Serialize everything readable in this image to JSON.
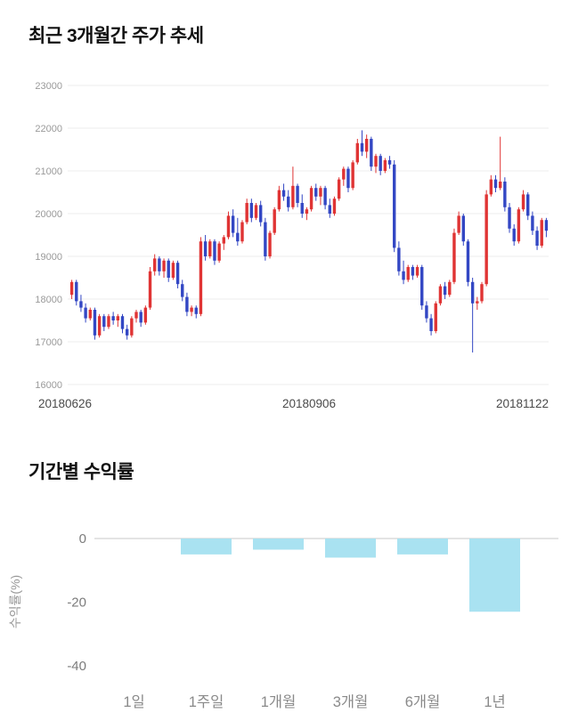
{
  "sections": {
    "price": {
      "title": "최근 3개월간 주가 추세"
    },
    "returns": {
      "title": "기간별 수익률"
    }
  },
  "chart_data": [
    {
      "type": "candlestick",
      "title": "최근 3개월간 주가 추세",
      "ylim": [
        16000,
        23000
      ],
      "y_ticks": [
        16000,
        17000,
        18000,
        19000,
        20000,
        21000,
        22000,
        23000
      ],
      "x_labels": [
        "20180626",
        "20180906",
        "20181122"
      ],
      "up_color": "#e03434",
      "down_color": "#3347c4",
      "grid": true,
      "legend": "none",
      "ohlc": [
        [
          18100,
          18450,
          18000,
          18400
        ],
        [
          18400,
          18450,
          17850,
          17950
        ],
        [
          17950,
          18100,
          17700,
          17800
        ],
        [
          17800,
          17900,
          17450,
          17550
        ],
        [
          17550,
          17800,
          17500,
          17750
        ],
        [
          17750,
          17800,
          17050,
          17150
        ],
        [
          17150,
          17650,
          17100,
          17600
        ],
        [
          17600,
          17650,
          17250,
          17350
        ],
        [
          17350,
          17650,
          17300,
          17600
        ],
        [
          17600,
          17700,
          17400,
          17500
        ],
        [
          17500,
          17650,
          17350,
          17600
        ],
        [
          17600,
          17650,
          17200,
          17300
        ],
        [
          17300,
          17400,
          17050,
          17150
        ],
        [
          17150,
          17600,
          17100,
          17550
        ],
        [
          17550,
          17750,
          17450,
          17700
        ],
        [
          17700,
          17750,
          17350,
          17450
        ],
        [
          17450,
          17850,
          17400,
          17800
        ],
        [
          17800,
          18750,
          17750,
          18650
        ],
        [
          18650,
          19050,
          18550,
          18950
        ],
        [
          18950,
          19000,
          18550,
          18650
        ],
        [
          18650,
          18950,
          18500,
          18900
        ],
        [
          18900,
          18950,
          18400,
          18500
        ],
        [
          18500,
          18900,
          18450,
          18850
        ],
        [
          18850,
          18900,
          18250,
          18350
        ],
        [
          18350,
          18450,
          17950,
          18050
        ],
        [
          18050,
          18150,
          17600,
          17700
        ],
        [
          17700,
          17850,
          17600,
          17800
        ],
        [
          17800,
          17850,
          17550,
          17650
        ],
        [
          17650,
          19450,
          17600,
          19350
        ],
        [
          19350,
          19500,
          18900,
          19000
        ],
        [
          19000,
          19400,
          18950,
          19350
        ],
        [
          19350,
          19400,
          18800,
          18900
        ],
        [
          18900,
          19350,
          18850,
          19300
        ],
        [
          19300,
          19500,
          19150,
          19450
        ],
        [
          19450,
          20050,
          19400,
          19950
        ],
        [
          19950,
          20100,
          19450,
          19550
        ],
        [
          19550,
          19900,
          19250,
          19350
        ],
        [
          19350,
          19850,
          19300,
          19800
        ],
        [
          19800,
          20350,
          19750,
          20250
        ],
        [
          20250,
          20350,
          19800,
          19900
        ],
        [
          19900,
          20250,
          19850,
          20200
        ],
        [
          20200,
          20300,
          19700,
          19800
        ],
        [
          19800,
          19900,
          18900,
          19000
        ],
        [
          19000,
          19600,
          18950,
          19550
        ],
        [
          19550,
          20150,
          19500,
          20100
        ],
        [
          20100,
          20650,
          20050,
          20550
        ],
        [
          20550,
          20700,
          20300,
          20400
        ],
        [
          20400,
          20550,
          20050,
          20150
        ],
        [
          20150,
          21100,
          20100,
          20650
        ],
        [
          20650,
          20700,
          20150,
          20250
        ],
        [
          20250,
          20450,
          19900,
          20000
        ],
        [
          20000,
          20150,
          19850,
          20100
        ],
        [
          20100,
          20650,
          20050,
          20600
        ],
        [
          20600,
          20700,
          20300,
          20400
        ],
        [
          20400,
          20650,
          20200,
          20600
        ],
        [
          20600,
          20650,
          20100,
          20200
        ],
        [
          20200,
          20350,
          19900,
          20000
        ],
        [
          20000,
          20400,
          19950,
          20350
        ],
        [
          20350,
          20850,
          20300,
          20800
        ],
        [
          20800,
          21100,
          20650,
          21050
        ],
        [
          21050,
          21100,
          20500,
          20600
        ],
        [
          20600,
          21250,
          20550,
          21200
        ],
        [
          21200,
          21750,
          21150,
          21650
        ],
        [
          21650,
          21950,
          21350,
          21450
        ],
        [
          21450,
          21850,
          21300,
          21750
        ],
        [
          21750,
          21800,
          21000,
          21100
        ],
        [
          21100,
          21400,
          20950,
          21350
        ],
        [
          21350,
          21400,
          20900,
          21000
        ],
        [
          21000,
          21300,
          20950,
          21250
        ],
        [
          21250,
          21350,
          21050,
          21150
        ],
        [
          21150,
          21250,
          19100,
          19200
        ],
        [
          19200,
          19350,
          18550,
          18650
        ],
        [
          18650,
          18900,
          18350,
          18450
        ],
        [
          18450,
          18800,
          18400,
          18750
        ],
        [
          18750,
          18800,
          18450,
          18550
        ],
        [
          18550,
          18800,
          18500,
          18750
        ],
        [
          18750,
          18800,
          17750,
          17850
        ],
        [
          17850,
          17950,
          17450,
          17550
        ],
        [
          17550,
          17650,
          17150,
          17250
        ],
        [
          17250,
          17950,
          17200,
          17900
        ],
        [
          17900,
          18350,
          17850,
          18300
        ],
        [
          18300,
          18400,
          18000,
          18100
        ],
        [
          18100,
          18450,
          18050,
          18400
        ],
        [
          18400,
          19650,
          18350,
          19550
        ],
        [
          19550,
          20050,
          19500,
          19950
        ],
        [
          19950,
          20000,
          19250,
          19350
        ],
        [
          19350,
          19400,
          18300,
          18400
        ],
        [
          18400,
          18500,
          16750,
          17900
        ],
        [
          17900,
          18050,
          17750,
          17950
        ],
        [
          17950,
          18400,
          17900,
          18350
        ],
        [
          18350,
          20550,
          18300,
          20450
        ],
        [
          20450,
          20900,
          20400,
          20800
        ],
        [
          20800,
          20900,
          20500,
          20600
        ],
        [
          20600,
          21800,
          20550,
          20750
        ],
        [
          20750,
          20850,
          20050,
          20150
        ],
        [
          20150,
          20250,
          19550,
          19650
        ],
        [
          19650,
          19750,
          19250,
          19350
        ],
        [
          19350,
          20150,
          19300,
          20100
        ],
        [
          20100,
          20550,
          20050,
          20450
        ],
        [
          20450,
          20500,
          19850,
          19950
        ],
        [
          19950,
          20050,
          19500,
          19600
        ],
        [
          19600,
          19700,
          19150,
          19250
        ],
        [
          19250,
          19900,
          19200,
          19850
        ],
        [
          19850,
          19900,
          19450,
          19600
        ]
      ]
    },
    {
      "type": "bar",
      "title": "기간별 수익률",
      "categories": [
        "1일",
        "1주일",
        "1개월",
        "3개월",
        "6개월",
        "1년"
      ],
      "values": [
        0,
        -5,
        -3.5,
        -6,
        -5,
        -23
      ],
      "ylabel": "수익률(%)",
      "xlabel": "",
      "y_ticks": [
        0,
        -20,
        -40
      ],
      "ylim": [
        -40,
        0
      ],
      "bar_color": "#a9e2f1",
      "grid": false,
      "legend": "none"
    }
  ]
}
